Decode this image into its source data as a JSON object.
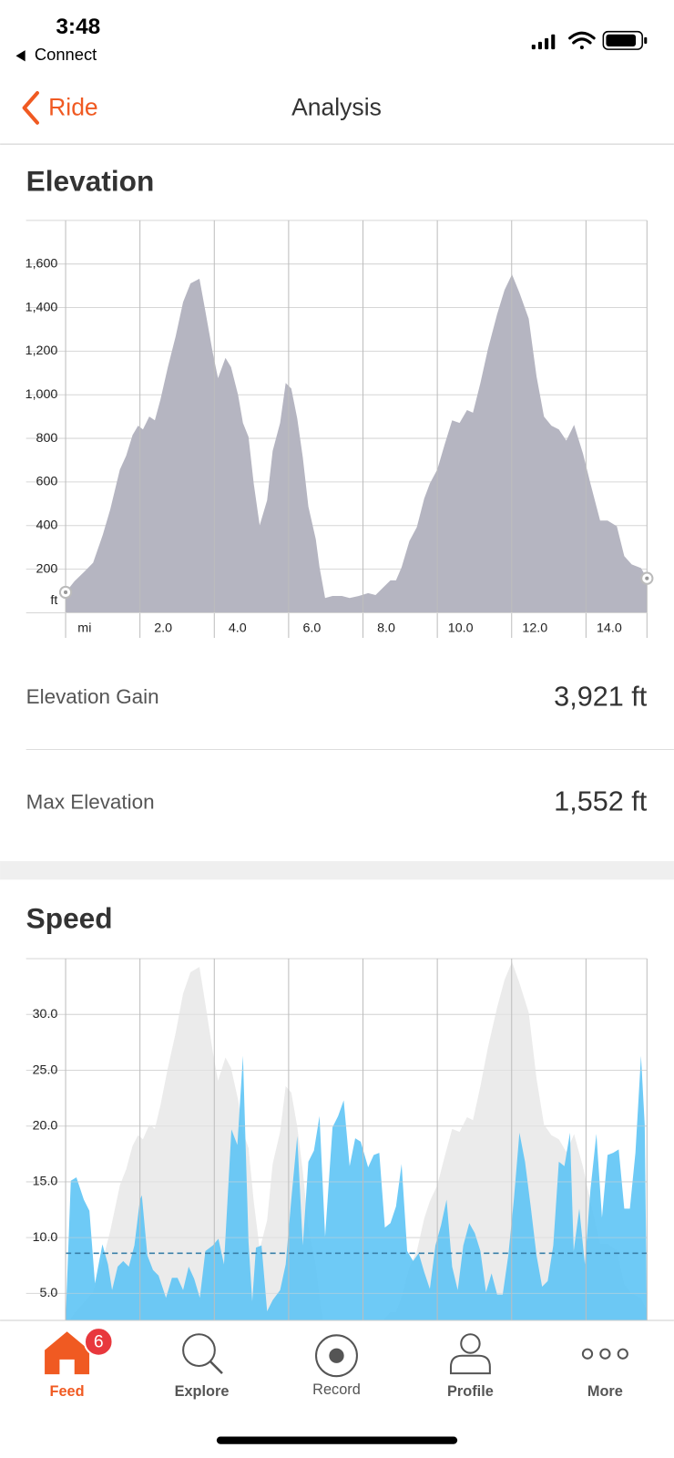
{
  "status_bar": {
    "time": "3:48",
    "back_app": "Connect"
  },
  "nav": {
    "back": "Ride",
    "title": "Analysis"
  },
  "chart_data": [
    {
      "type": "area",
      "title": "Elevation",
      "x_unit": "mi",
      "y_unit": "ft",
      "color": "#b5b5c1",
      "grid": true,
      "x": [
        0,
        0.24,
        0.5,
        0.74,
        1.0,
        1.2,
        1.46,
        1.63,
        1.8,
        1.95,
        2.08,
        2.25,
        2.4,
        2.55,
        2.75,
        2.96,
        3.16,
        3.36,
        3.6,
        3.76,
        3.96,
        4.1,
        4.3,
        4.45,
        4.64,
        4.77,
        4.92,
        5.06,
        5.22,
        5.42,
        5.57,
        5.77,
        5.92,
        6.07,
        6.23,
        6.38,
        6.53,
        6.73,
        6.83,
        6.98,
        7.18,
        7.43,
        7.64,
        7.89,
        8.14,
        8.34,
        8.54,
        8.74,
        8.89,
        9.04,
        9.25,
        9.45,
        9.65,
        9.8,
        10.0,
        10.2,
        10.4,
        10.6,
        10.8,
        10.96,
        11.16,
        11.36,
        11.61,
        11.81,
        12.01,
        12.21,
        12.46,
        12.67,
        12.87,
        13.07,
        13.27,
        13.47,
        13.62,
        13.68,
        13.92,
        14.12,
        14.38,
        14.58,
        14.83,
        15.03,
        15.23,
        15.48,
        15.64
      ],
      "values": [
        94,
        145,
        188,
        230,
        358,
        474,
        657,
        721,
        815,
        858,
        841,
        900,
        883,
        977,
        1127,
        1268,
        1425,
        1511,
        1532,
        1383,
        1191,
        1076,
        1169,
        1127,
        999,
        871,
        807,
        593,
        401,
        516,
        743,
        871,
        1054,
        1029,
        892,
        713,
        487,
        337,
        209,
        68,
        77,
        77,
        68,
        77,
        90,
        81,
        115,
        149,
        149,
        209,
        329,
        393,
        525,
        593,
        657,
        773,
        883,
        871,
        930,
        918,
        1054,
        1208,
        1370,
        1481,
        1552,
        1468,
        1349,
        1084,
        900,
        858,
        841,
        790,
        841,
        862,
        730,
        593,
        423,
        423,
        397,
        260,
        222,
        205,
        158
      ],
      "xlim": [
        0,
        15.64
      ],
      "xticks": [
        {
          "value": 2,
          "label": "2.0"
        },
        {
          "value": 4,
          "label": "4.0"
        },
        {
          "value": 6,
          "label": "6.0"
        },
        {
          "value": 8,
          "label": "8.0"
        },
        {
          "value": 10,
          "label": "10.0"
        },
        {
          "value": 12,
          "label": "12.0"
        },
        {
          "value": 14,
          "label": "14.0"
        }
      ],
      "ylim": [
        0,
        1800
      ],
      "yticks": [
        200,
        400,
        600,
        800,
        {
          "value": 1000,
          "label": "1,000"
        },
        {
          "value": 1200,
          "label": "1,200"
        },
        {
          "value": 1400,
          "label": "1,400"
        },
        {
          "value": 1600,
          "label": "1,600"
        }
      ]
    },
    {
      "type": "area",
      "title": "Speed",
      "color": "#5ec4f5",
      "grid": true,
      "elevation_overlay": true,
      "overlay_color": "#ebebeb",
      "average": 8.6,
      "average_color": "#3a7fa8",
      "x": [
        0,
        0.14,
        0.29,
        0.49,
        0.64,
        0.79,
        0.99,
        1.14,
        1.25,
        1.4,
        1.55,
        1.7,
        1.85,
        2.0,
        2.05,
        2.2,
        2.35,
        2.5,
        2.7,
        2.86,
        3.01,
        3.16,
        3.31,
        3.46,
        3.61,
        3.76,
        3.96,
        4.11,
        4.26,
        4.46,
        4.62,
        4.77,
        4.92,
        5.02,
        5.12,
        5.27,
        5.42,
        5.57,
        5.77,
        5.92,
        6.07,
        6.23,
        6.38,
        6.53,
        6.68,
        6.83,
        6.98,
        7.18,
        7.33,
        7.48,
        7.64,
        7.79,
        7.94,
        8.14,
        8.29,
        8.44,
        8.59,
        8.74,
        8.89,
        9.04,
        9.19,
        9.35,
        9.5,
        9.65,
        9.8,
        9.95,
        10.1,
        10.25,
        10.4,
        10.55,
        10.7,
        10.86,
        11.01,
        11.16,
        11.31,
        11.46,
        11.61,
        11.76,
        11.91,
        12.06,
        12.21,
        12.36,
        12.52,
        12.67,
        12.82,
        12.97,
        13.12,
        13.27,
        13.42,
        13.57,
        13.67,
        13.82,
        13.97,
        14.12,
        14.28,
        14.43,
        14.58,
        14.73,
        14.88,
        15.03,
        15.18,
        15.33,
        15.48,
        15.58,
        15.64
      ],
      "values": [
        2.6,
        15.1,
        15.4,
        13.4,
        12.4,
        5.9,
        9.4,
        7.6,
        5.3,
        7.4,
        7.9,
        7.4,
        9.3,
        13.4,
        13.8,
        8.4,
        7.1,
        6.6,
        4.6,
        6.4,
        6.4,
        5.3,
        7.4,
        6.3,
        4.6,
        8.8,
        9.3,
        9.9,
        7.6,
        19.7,
        18.3,
        26.3,
        9.6,
        4.3,
        9.1,
        9.3,
        3.4,
        4.4,
        5.3,
        7.6,
        13.4,
        19.1,
        9.3,
        16.8,
        17.8,
        20.9,
        10.1,
        19.9,
        20.9,
        22.3,
        16.4,
        18.9,
        18.6,
        16.3,
        17.4,
        17.6,
        10.9,
        11.3,
        12.8,
        16.6,
        8.8,
        7.9,
        8.6,
        6.9,
        5.4,
        9.3,
        11.1,
        13.4,
        7.4,
        5.3,
        9.3,
        11.3,
        10.4,
        8.8,
        5.1,
        6.8,
        4.9,
        4.9,
        8.4,
        13.4,
        19.4,
        16.8,
        12.6,
        8.4,
        5.6,
        6.1,
        9.3,
        16.8,
        16.4,
        19.4,
        8.8,
        12.6,
        7.6,
        14.3,
        19.3,
        11.8,
        17.4,
        17.6,
        17.9,
        12.6,
        12.6,
        17.6,
        26.3,
        20.1,
        2.6
      ],
      "xlim": [
        0,
        15.64
      ],
      "ylim": [
        0,
        35
      ],
      "yticks": [
        {
          "value": 5,
          "label": "5.0"
        },
        {
          "value": 10,
          "label": "10.0"
        },
        {
          "value": 15,
          "label": "15.0"
        },
        {
          "value": 20,
          "label": "20.0"
        },
        {
          "value": 25,
          "label": "25.0"
        },
        {
          "value": 30,
          "label": "30.0"
        }
      ]
    }
  ],
  "stats": [
    {
      "label": "Elevation Gain",
      "value": "3,921 ft"
    },
    {
      "label": "Max Elevation",
      "value": "1,552 ft"
    }
  ],
  "tab_bar": {
    "items": [
      {
        "label": "Feed",
        "badge": 6
      },
      {
        "label": "Explore"
      },
      {
        "label": "Record"
      },
      {
        "label": "Profile"
      },
      {
        "label": "More"
      }
    ]
  }
}
